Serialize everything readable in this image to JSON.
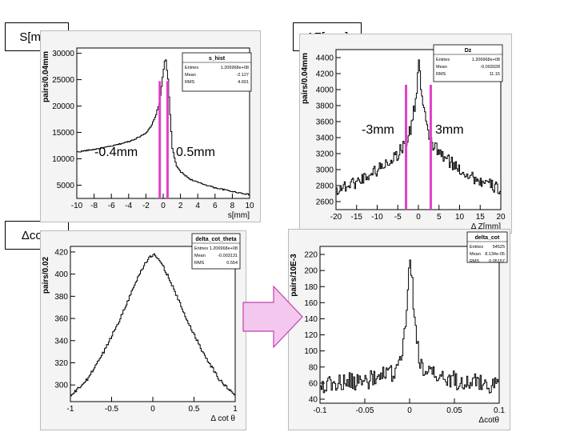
{
  "labels": {
    "s": "S[mm]",
    "dz": "ΔZ[mm]",
    "dcot": "Δcotθ"
  },
  "annotations": {
    "s_left": "-0.4mm",
    "s_right": "0.5mm",
    "dz_left": "-3mm",
    "dz_right": "3mm"
  },
  "colors": {
    "cut_line": "#e040c8",
    "arrow_fill": "#f4c8ee",
    "arrow_stroke": "#c040b0",
    "histogram": "#000000",
    "frame": "#000000"
  },
  "chart_data": [
    {
      "id": "s_hist",
      "type": "line",
      "stats": {
        "title": "s_hist",
        "rows": [
          [
            "Entries",
            "1.206968e+08"
          ],
          [
            "Mean",
            "-2.127"
          ],
          [
            "RMS",
            "4.601"
          ]
        ]
      },
      "ylabel": "pairs/0.04mm",
      "xlabel": "s[mm]",
      "xlim": [
        -10,
        10
      ],
      "ylim": [
        2500,
        31000
      ],
      "xticks": [
        -10,
        -8,
        -6,
        -4,
        -2,
        0,
        2,
        4,
        6,
        8,
        10
      ],
      "yticks": [
        5000,
        10000,
        15000,
        20000,
        25000,
        30000
      ],
      "series": [
        {
          "x": [
            -10,
            -8,
            -6,
            -4,
            -3,
            -2,
            -1.5,
            -1,
            -0.5,
            0,
            0.2,
            0.5,
            0.8,
            1,
            1.5,
            2,
            3,
            4,
            6,
            8,
            10
          ],
          "y": [
            11300,
            11800,
            12400,
            13300,
            14000,
            15000,
            16000,
            17800,
            20500,
            27000,
            29500,
            25000,
            17000,
            12000,
            8500,
            7500,
            6200,
            5500,
            4500,
            3800,
            3200
          ]
        }
      ],
      "cuts": [
        -0.4,
        0.5
      ]
    },
    {
      "id": "dz",
      "type": "line",
      "stats": {
        "title": "Dz",
        "rows": [
          [
            "Entries",
            "1.206968e+08"
          ],
          [
            "Mean",
            "-0.003028"
          ],
          [
            "RMS",
            "11.15"
          ]
        ]
      },
      "ylabel": "pairs/0.04mm",
      "xlabel": "Δ Z[mm]",
      "xlim": [
        -20,
        20
      ],
      "ylim": [
        2500,
        4500
      ],
      "xticks": [
        -20,
        -15,
        -10,
        -5,
        0,
        5,
        10,
        15,
        20
      ],
      "yticks": [
        2600,
        2800,
        3000,
        3200,
        3400,
        3600,
        3800,
        4000,
        4200,
        4400
      ],
      "series": [
        {
          "x": [
            -20,
            -15,
            -10,
            -5,
            -3,
            -2,
            -1,
            -0.5,
            0,
            0.5,
            1,
            2,
            3,
            5,
            10,
            15,
            20
          ],
          "y": [
            2750,
            2850,
            3000,
            3200,
            3350,
            3500,
            3800,
            4000,
            4400,
            4000,
            3800,
            3500,
            3350,
            3200,
            3000,
            2850,
            2750
          ]
        }
      ],
      "cuts": [
        -3,
        3
      ]
    },
    {
      "id": "delta_cot_theta",
      "type": "line",
      "stats": {
        "title": "delta_cot_theta",
        "rows": [
          [
            "Entries",
            "1.206968e+08"
          ],
          [
            "Mean",
            "-0.003131"
          ],
          [
            "RMS",
            "0.554"
          ]
        ]
      },
      "ylabel": "pairs/0.02",
      "xlabel": "Δ cot θ",
      "xlim": [
        -1,
        1
      ],
      "ylim": [
        285,
        425
      ],
      "xticks": [
        -1,
        -0.5,
        0,
        0.5,
        1
      ],
      "yticks": [
        300,
        320,
        340,
        360,
        380,
        400,
        420
      ],
      "series": [
        {
          "x": [
            -1,
            -0.8,
            -0.6,
            -0.4,
            -0.2,
            -0.1,
            0,
            0.1,
            0.2,
            0.4,
            0.6,
            0.8,
            1
          ],
          "y": [
            290,
            305,
            330,
            360,
            395,
            410,
            418,
            410,
            395,
            360,
            330,
            305,
            290
          ]
        }
      ]
    },
    {
      "id": "delta_cot",
      "type": "line",
      "stats": {
        "title": "delta_cot",
        "rows": [
          [
            "Entries",
            "54525"
          ],
          [
            "Mean",
            "8.134e-05"
          ],
          [
            "RMS",
            "0.05157"
          ]
        ]
      },
      "ylabel": "pairs/10E-3",
      "xlabel": "Δcotθ",
      "xlim": [
        -0.1,
        0.1
      ],
      "ylim": [
        35,
        230
      ],
      "xticks": [
        -0.1,
        -0.05,
        0,
        0.05,
        0.1
      ],
      "yticks": [
        40,
        60,
        80,
        100,
        120,
        140,
        160,
        180,
        200,
        220
      ],
      "series": [
        {
          "x": [
            -0.1,
            -0.08,
            -0.06,
            -0.04,
            -0.02,
            -0.01,
            -0.005,
            0,
            0.005,
            0.01,
            0.02,
            0.04,
            0.06,
            0.08,
            0.1
          ],
          "y": [
            58,
            60,
            62,
            65,
            72,
            85,
            130,
            222,
            140,
            90,
            72,
            65,
            62,
            60,
            58
          ]
        }
      ]
    }
  ]
}
